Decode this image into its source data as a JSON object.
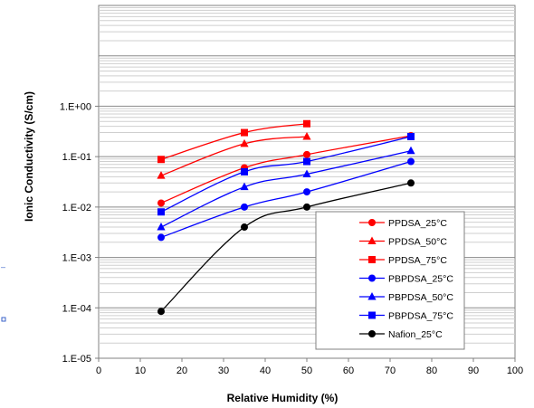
{
  "chart_data": {
    "type": "line",
    "title": "",
    "xlabel": "Relative Humidity (%)",
    "ylabel": "Ionic Conductivity (S/cm)",
    "xlim": [
      0,
      100
    ],
    "ylim": [
      1e-05,
      100
    ],
    "yscale": "log",
    "grid": true,
    "legend_position": "bottom-right",
    "x_ticks": [
      "0",
      "10",
      "20",
      "30",
      "40",
      "50",
      "60",
      "70",
      "80",
      "90",
      "100"
    ],
    "y_ticks": [
      "1.E-05",
      "1.E-04",
      "1.E-03",
      "1.E-02",
      "1.E-01",
      "1.E+00"
    ],
    "series": [
      {
        "name": "PPDSA_25°C",
        "color": "#ff0000",
        "marker": "circle",
        "x": [
          15,
          35,
          50,
          75
        ],
        "y": [
          0.012,
          0.06,
          0.11,
          0.26
        ]
      },
      {
        "name": "PPDSA_50°C",
        "color": "#ff0000",
        "marker": "triangle",
        "x": [
          15,
          35,
          50
        ],
        "y": [
          0.042,
          0.18,
          0.25
        ]
      },
      {
        "name": "PPDSA_75°C",
        "color": "#ff0000",
        "marker": "square",
        "x": [
          15,
          35,
          50
        ],
        "y": [
          0.088,
          0.3,
          0.45
        ]
      },
      {
        "name": "PBPDSA_25°C",
        "color": "#0000ff",
        "marker": "circle",
        "x": [
          15,
          35,
          50,
          75
        ],
        "y": [
          0.0025,
          0.01,
          0.02,
          0.08
        ]
      },
      {
        "name": "PBPDSA_50°C",
        "color": "#0000ff",
        "marker": "triangle",
        "x": [
          15,
          35,
          50,
          75
        ],
        "y": [
          0.004,
          0.025,
          0.045,
          0.13
        ]
      },
      {
        "name": "PBPDSA_75°C",
        "color": "#0000ff",
        "marker": "square",
        "x": [
          15,
          35,
          50,
          75
        ],
        "y": [
          0.008,
          0.05,
          0.08,
          0.25
        ]
      },
      {
        "name": "Nafion_25°C",
        "color": "#000000",
        "marker": "circle",
        "x": [
          15,
          35,
          50,
          75
        ],
        "y": [
          8.5e-05,
          0.004,
          0.01,
          0.03
        ]
      }
    ]
  }
}
